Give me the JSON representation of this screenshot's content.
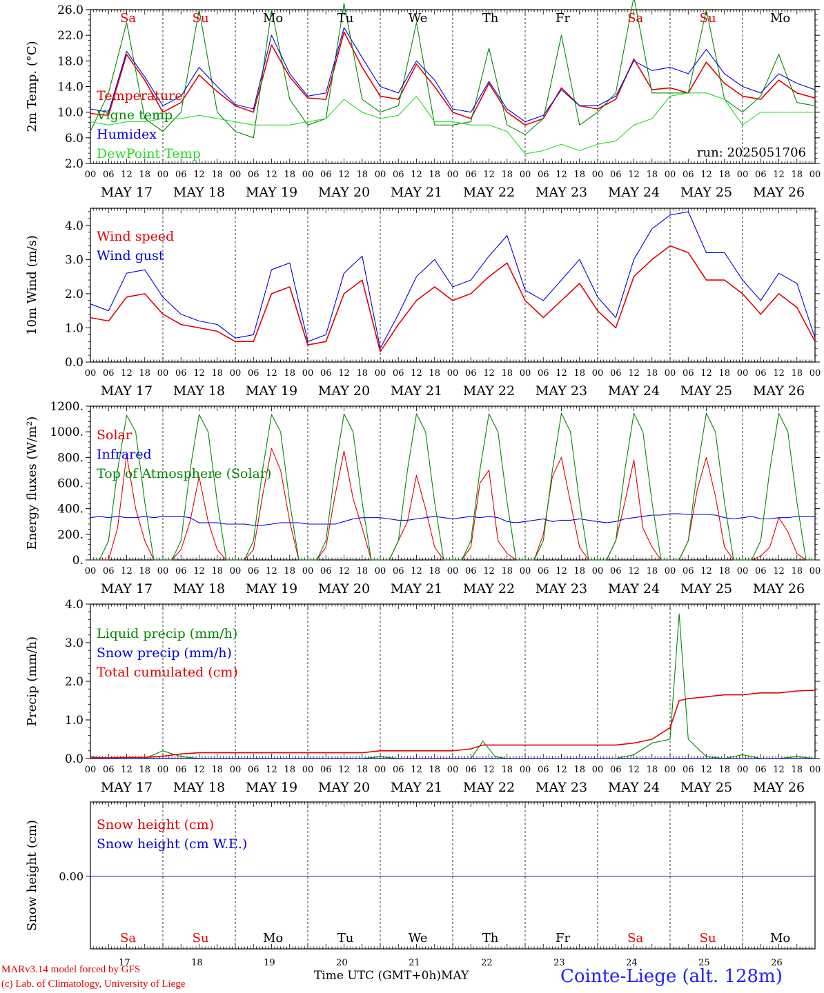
{
  "days": {
    "weekdays": [
      "Sa",
      "Su",
      "Mo",
      "Tu",
      "We",
      "Th",
      "Fr",
      "Sa",
      "Su",
      "Mo"
    ],
    "weekday_colors": [
      "#e00000",
      "#e00000",
      "#000000",
      "#000000",
      "#000000",
      "#000000",
      "#000000",
      "#e00000",
      "#e00000",
      "#000000"
    ],
    "dates": [
      "MAY 17",
      "MAY 18",
      "MAY 19",
      "MAY 20",
      "MAY 21",
      "MAY 22",
      "MAY 23",
      "MAY 24",
      "MAY 25",
      "MAY 26"
    ],
    "day_numbers": [
      "17",
      "18",
      "19",
      "20",
      "21",
      "22",
      "23",
      "24",
      "25",
      "26"
    ],
    "hour_ticks": [
      "00",
      "06",
      "12",
      "18"
    ],
    "final_tick": "00"
  },
  "footer": {
    "model": "MARv3.14 model forced by GFS",
    "lab": "(c) Lab. of Climatology, University of Liege",
    "axis_label": "Time UTC (GMT+0h)",
    "month": "MAY",
    "station": "Cointe-Liege (alt. 128m)"
  },
  "colors": {
    "red": "#e00000",
    "blue": "#0000e0",
    "green": "#008800",
    "lightgreen": "#22dd22",
    "black": "#000000"
  },
  "chart_data": [
    {
      "id": "temp",
      "type": "line",
      "ylabel": "2m Temp. (°C)",
      "ylim": [
        2,
        26
      ],
      "yticks": [
        "2.0",
        "6.0",
        "10.0",
        "14.0",
        "18.0",
        "22.0",
        "26.0"
      ],
      "annotation": "run: 2025051706",
      "x_hours_from_may17_00": [
        0,
        6,
        12,
        18,
        24,
        30,
        36,
        42,
        48,
        54,
        60,
        66,
        72,
        78,
        84,
        90,
        96,
        102,
        108,
        114,
        120,
        126,
        132,
        138,
        144,
        150,
        156,
        162,
        168,
        174,
        180,
        186,
        192,
        198,
        204,
        210,
        216,
        222,
        228,
        234,
        240
      ],
      "series": [
        {
          "name": "Temperature",
          "color": "#e00000",
          "values": [
            9.8,
            9.5,
            19.0,
            15.0,
            10.0,
            11.5,
            15.8,
            13.2,
            11.0,
            10.0,
            20.5,
            15.5,
            12.2,
            12.0,
            22.5,
            17.0,
            12.5,
            12.0,
            17.5,
            14.0,
            10.0,
            9.0,
            14.5,
            10.0,
            8.0,
            9.0,
            13.8,
            11.0,
            10.5,
            12.0,
            18.3,
            13.5,
            13.8,
            13.0,
            17.8,
            14.5,
            12.5,
            12.0,
            15.0,
            13.0,
            12.2
          ]
        },
        {
          "name": "Vigne temp",
          "color": "#008800",
          "values": [
            7.0,
            13.0,
            24.0,
            9.0,
            7.0,
            10.0,
            26.0,
            10.0,
            7.0,
            6.0,
            26.0,
            12.0,
            8.0,
            9.0,
            27.0,
            12.0,
            10.0,
            11.0,
            24.0,
            8.0,
            8.0,
            8.5,
            20.0,
            8.0,
            6.5,
            9.0,
            22.0,
            8.0,
            10.0,
            13.0,
            28.0,
            13.0,
            13.0,
            13.0,
            26.0,
            12.0,
            10.0,
            12.5,
            19.0,
            11.5,
            11.0
          ]
        },
        {
          "name": "Humidex",
          "color": "#0000e0",
          "values": [
            10.5,
            10.0,
            19.5,
            15.5,
            11.0,
            12.5,
            17.0,
            14.0,
            11.2,
            10.5,
            22.0,
            16.0,
            12.5,
            13.0,
            23.2,
            18.5,
            14.0,
            13.0,
            18.0,
            15.0,
            10.5,
            10.0,
            14.8,
            10.5,
            8.5,
            9.5,
            13.5,
            11.0,
            11.0,
            12.5,
            18.0,
            16.5,
            17.0,
            16.0,
            19.8,
            16.0,
            14.0,
            13.0,
            16.0,
            14.5,
            13.5
          ]
        },
        {
          "name": "DewPoint Temp",
          "color": "#22dd22",
          "values": [
            8.5,
            8.0,
            8.5,
            8.5,
            9.0,
            9.0,
            9.5,
            9.0,
            8.5,
            8.0,
            8.0,
            8.0,
            8.5,
            9.0,
            12.0,
            10.0,
            9.0,
            9.5,
            12.5,
            8.5,
            8.5,
            8.0,
            8.0,
            7.0,
            3.5,
            4.0,
            5.0,
            4.0,
            5.0,
            5.5,
            8.0,
            9.0,
            12.5,
            13.0,
            13.0,
            12.0,
            8.0,
            10.0,
            10.0,
            10.0,
            10.0
          ]
        }
      ]
    },
    {
      "id": "wind",
      "type": "line",
      "ylabel": "10m Wind (m/s)",
      "ylim": [
        0,
        4.5
      ],
      "yticks": [
        "0.0",
        "1.0",
        "2.0",
        "3.0",
        "4.0"
      ],
      "x_hours_from_may17_00": [
        0,
        6,
        12,
        18,
        24,
        30,
        36,
        42,
        48,
        54,
        60,
        66,
        72,
        78,
        84,
        90,
        96,
        102,
        108,
        114,
        120,
        126,
        132,
        138,
        144,
        150,
        156,
        162,
        168,
        174,
        180,
        186,
        192,
        198,
        204,
        210,
        216,
        222,
        228,
        234,
        240
      ],
      "series": [
        {
          "name": "Wind speed",
          "color": "#e00000",
          "values": [
            1.3,
            1.2,
            1.9,
            2.0,
            1.4,
            1.1,
            1.0,
            0.9,
            0.6,
            0.6,
            2.0,
            2.2,
            0.5,
            0.6,
            2.0,
            2.4,
            0.3,
            1.1,
            1.8,
            2.2,
            1.8,
            2.0,
            2.5,
            2.9,
            1.8,
            1.3,
            1.8,
            2.3,
            1.5,
            1.0,
            2.5,
            3.0,
            3.4,
            3.2,
            2.4,
            2.4,
            2.0,
            1.4,
            2.0,
            1.6,
            0.6
          ]
        },
        {
          "name": "Wind gust",
          "color": "#0000e0",
          "values": [
            1.7,
            1.5,
            2.6,
            2.7,
            1.9,
            1.4,
            1.2,
            1.1,
            0.7,
            0.8,
            2.7,
            2.9,
            0.6,
            0.8,
            2.6,
            3.1,
            0.4,
            1.4,
            2.5,
            3.0,
            2.2,
            2.4,
            3.1,
            3.7,
            2.1,
            1.8,
            2.4,
            3.0,
            1.9,
            1.3,
            3.0,
            3.9,
            4.3,
            4.4,
            3.2,
            3.2,
            2.4,
            1.8,
            2.6,
            2.3,
            0.7
          ]
        }
      ]
    },
    {
      "id": "flux",
      "type": "line",
      "ylabel": "Energy fluxes (W/m²)",
      "ylim": [
        0,
        1200
      ],
      "yticks": [
        "0.",
        "200.",
        "400.",
        "600.",
        "800.",
        "1000.",
        "1200."
      ],
      "x_hours_from_may17_00": [
        0,
        3,
        6,
        9,
        12,
        15,
        18,
        21,
        24,
        27,
        30,
        33,
        36,
        39,
        42,
        45,
        48,
        51,
        54,
        57,
        60,
        63,
        66,
        69,
        72,
        75,
        78,
        81,
        84,
        87,
        90,
        93,
        96,
        99,
        102,
        105,
        108,
        111,
        114,
        117,
        120,
        123,
        126,
        129,
        132,
        135,
        138,
        141,
        144,
        147,
        150,
        153,
        156,
        159,
        162,
        165,
        168,
        171,
        174,
        177,
        180,
        183,
        186,
        189,
        192,
        195,
        198,
        201,
        204,
        207,
        210,
        213,
        216,
        219,
        222,
        225,
        228,
        231,
        234,
        237,
        240
      ],
      "series": [
        {
          "name": "Solar",
          "color": "#e00000",
          "values": [
            0,
            0,
            0,
            250,
            820,
            400,
            150,
            0,
            0,
            0,
            80,
            300,
            650,
            300,
            80,
            0,
            0,
            0,
            80,
            500,
            870,
            700,
            300,
            0,
            0,
            0,
            100,
            500,
            850,
            480,
            250,
            0,
            0,
            0,
            150,
            300,
            660,
            400,
            100,
            0,
            0,
            0,
            100,
            600,
            700,
            150,
            50,
            0,
            0,
            0,
            200,
            650,
            800,
            450,
            100,
            0,
            0,
            0,
            150,
            450,
            780,
            250,
            100,
            0,
            0,
            0,
            150,
            550,
            800,
            500,
            100,
            0,
            0,
            0,
            30,
            100,
            330,
            220,
            50,
            0
          ]
        },
        {
          "name": "Infrared",
          "color": "#0000e0",
          "values": [
            330,
            340,
            330,
            340,
            330,
            330,
            340,
            330,
            340,
            340,
            340,
            330,
            290,
            290,
            290,
            280,
            280,
            280,
            270,
            270,
            280,
            290,
            290,
            290,
            280,
            280,
            280,
            280,
            300,
            320,
            330,
            330,
            330,
            320,
            310,
            310,
            320,
            330,
            340,
            330,
            320,
            330,
            340,
            330,
            340,
            330,
            300,
            290,
            300,
            310,
            320,
            300,
            310,
            310,
            320,
            310,
            300,
            290,
            300,
            320,
            330,
            340,
            350,
            350,
            360,
            360,
            355,
            355,
            355,
            350,
            330,
            320,
            330,
            340,
            320,
            320,
            330,
            330,
            340,
            340,
            340
          ]
        },
        {
          "name": "Top of Atmosphere (Solar)",
          "color": "#008800",
          "values": [
            0,
            0,
            150,
            700,
            1130,
            1000,
            450,
            0,
            0,
            0,
            150,
            700,
            1135,
            1000,
            450,
            0,
            0,
            0,
            150,
            700,
            1135,
            1000,
            450,
            0,
            0,
            0,
            150,
            700,
            1140,
            1000,
            450,
            0,
            0,
            0,
            150,
            700,
            1140,
            1000,
            450,
            0,
            0,
            0,
            150,
            700,
            1140,
            1000,
            450,
            0,
            0,
            0,
            150,
            700,
            1145,
            1000,
            450,
            0,
            0,
            0,
            150,
            700,
            1145,
            1000,
            450,
            0,
            0,
            0,
            150,
            700,
            1145,
            1000,
            450,
            0,
            0,
            0,
            150,
            700,
            1145,
            1000,
            450,
            0,
            0
          ]
        }
      ]
    },
    {
      "id": "precip",
      "type": "line",
      "ylabel": "Precip (mm/h)",
      "ylim": [
        0,
        4.0
      ],
      "yticks": [
        "0.0",
        "1.0",
        "2.0",
        "3.0",
        "4.0"
      ],
      "x_hours_from_may17_00": [
        0,
        6,
        12,
        18,
        24,
        30,
        36,
        42,
        48,
        54,
        60,
        66,
        72,
        78,
        84,
        90,
        96,
        102,
        108,
        114,
        120,
        126,
        130,
        134,
        138,
        144,
        150,
        156,
        162,
        168,
        174,
        180,
        186,
        192,
        195,
        198,
        204,
        210,
        216,
        222,
        228,
        234,
        240
      ],
      "series": [
        {
          "name": "Liquid precip (mm/h)",
          "color": "#008800",
          "values": [
            0.05,
            0.0,
            0.0,
            0.0,
            0.2,
            0.05,
            0.0,
            0.0,
            0.0,
            0.0,
            0.0,
            0.0,
            0.0,
            0.0,
            0.0,
            0.0,
            0.05,
            0.0,
            0.0,
            0.0,
            0.0,
            0.0,
            0.45,
            0.05,
            0.0,
            0.0,
            0.0,
            0.0,
            0.0,
            0.0,
            0.0,
            0.1,
            0.4,
            0.5,
            3.75,
            0.5,
            0.05,
            0.0,
            0.1,
            0.0,
            0.0,
            0.05,
            0.0
          ]
        },
        {
          "name": "Snow precip (mm/h)",
          "color": "#0000e0",
          "values": [
            0,
            0,
            0,
            0,
            0,
            0,
            0,
            0,
            0,
            0,
            0,
            0,
            0,
            0,
            0,
            0,
            0,
            0,
            0,
            0,
            0,
            0,
            0,
            0,
            0,
            0,
            0,
            0,
            0,
            0,
            0,
            0,
            0,
            0,
            0,
            0,
            0,
            0,
            0,
            0,
            0,
            0,
            0
          ]
        },
        {
          "name": "Total cumulated (cm)",
          "color": "#e00000",
          "values": [
            0.02,
            0.02,
            0.03,
            0.03,
            0.06,
            0.12,
            0.15,
            0.15,
            0.15,
            0.15,
            0.15,
            0.15,
            0.15,
            0.15,
            0.15,
            0.15,
            0.2,
            0.2,
            0.2,
            0.2,
            0.2,
            0.25,
            0.35,
            0.35,
            0.35,
            0.35,
            0.35,
            0.35,
            0.35,
            0.35,
            0.35,
            0.4,
            0.5,
            0.8,
            1.5,
            1.55,
            1.6,
            1.65,
            1.65,
            1.7,
            1.7,
            1.75,
            1.77
          ]
        }
      ]
    },
    {
      "id": "snow",
      "type": "line",
      "ylabel": "Snow height (cm)",
      "yticks": [
        "0.00"
      ],
      "x_hours_from_may17_00": [
        0,
        240
      ],
      "series": [
        {
          "name": "Snow height (cm)",
          "color": "#e00000",
          "values": [
            0,
            0
          ]
        },
        {
          "name": "Snow height (cm W.E.)",
          "color": "#0000e0",
          "values": [
            0,
            0
          ]
        }
      ]
    }
  ]
}
